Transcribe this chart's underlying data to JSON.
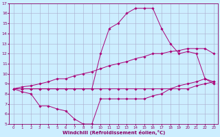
{
  "xlabel": "Windchill (Refroidissement éolien,°C)",
  "xlim": [
    -0.5,
    23.5
  ],
  "ylim": [
    5,
    17
  ],
  "yticks": [
    5,
    6,
    7,
    8,
    9,
    10,
    11,
    12,
    13,
    14,
    15,
    16,
    17
  ],
  "xticks": [
    0,
    1,
    2,
    3,
    4,
    5,
    6,
    7,
    8,
    9,
    10,
    11,
    12,
    13,
    14,
    15,
    16,
    17,
    18,
    19,
    20,
    21,
    22,
    23
  ],
  "background_color": "#cceeff",
  "line_color": "#aa0077",
  "grid_color": "#aaaacc",
  "series": [
    {
      "x": [
        0,
        1,
        2,
        3,
        4,
        5,
        6,
        7,
        8,
        9,
        10,
        11,
        12,
        13,
        14,
        15,
        16,
        17,
        18,
        19,
        20,
        21,
        22,
        23
      ],
      "y": [
        8.5,
        8.5,
        8.5,
        8.5,
        8.5,
        8.5,
        8.5,
        8.5,
        8.5,
        8.5,
        8.5,
        8.5,
        8.5,
        8.5,
        8.5,
        8.5,
        8.5,
        8.5,
        8.5,
        8.5,
        8.5,
        8.8,
        9.0,
        9.2
      ]
    },
    {
      "x": [
        0,
        1,
        2,
        3,
        4,
        5,
        6,
        7,
        8,
        9,
        10,
        11,
        12,
        13,
        14,
        15,
        16,
        17,
        18,
        19,
        20,
        21,
        22,
        23
      ],
      "y": [
        8.5,
        8.2,
        8.0,
        6.8,
        6.8,
        6.5,
        6.3,
        5.5,
        5.0,
        5.0,
        7.5,
        7.5,
        7.5,
        7.5,
        7.5,
        7.5,
        7.8,
        8.0,
        8.5,
        8.8,
        9.0,
        9.2,
        9.5,
        9.2
      ]
    },
    {
      "x": [
        0,
        1,
        2,
        3,
        4,
        5,
        6,
        7,
        8,
        9,
        10,
        11,
        12,
        13,
        14,
        15,
        16,
        17,
        18,
        19,
        20,
        21,
        22,
        23
      ],
      "y": [
        8.5,
        8.7,
        8.8,
        9.0,
        9.2,
        9.5,
        9.5,
        9.8,
        10.0,
        10.2,
        10.5,
        10.8,
        11.0,
        11.2,
        11.5,
        11.7,
        12.0,
        12.0,
        12.2,
        12.3,
        12.5,
        12.5,
        12.5,
        12.0
      ]
    },
    {
      "x": [
        0,
        1,
        2,
        3,
        4,
        5,
        6,
        7,
        8,
        9,
        10,
        11,
        12,
        13,
        14,
        15,
        16,
        17,
        18,
        19,
        20,
        21,
        22,
        23
      ],
      "y": [
        8.5,
        8.5,
        8.5,
        8.5,
        8.5,
        8.5,
        8.5,
        8.5,
        8.5,
        8.5,
        12.0,
        14.5,
        15.0,
        16.0,
        16.5,
        16.5,
        16.5,
        14.5,
        13.0,
        12.0,
        12.2,
        12.0,
        9.5,
        9.0
      ]
    }
  ]
}
